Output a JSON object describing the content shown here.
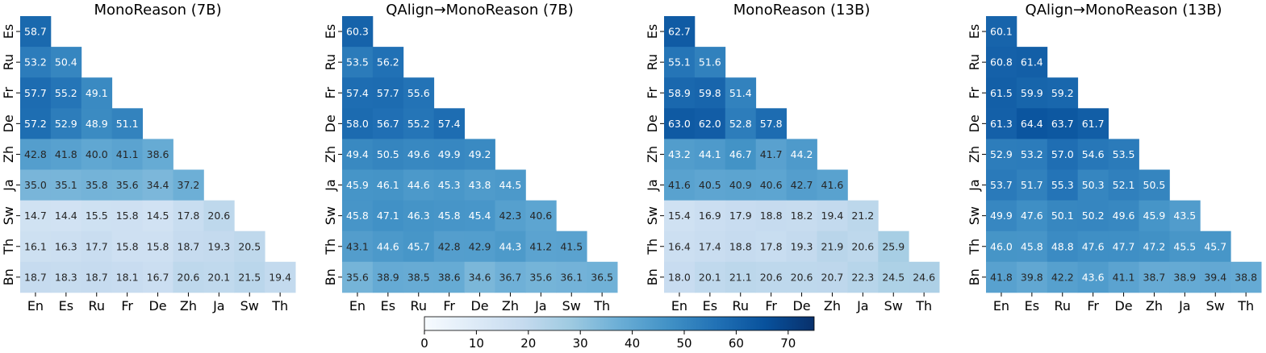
{
  "chart_data": [
    {
      "type": "heatmap",
      "title": "MonoReason (7B)",
      "rows": [
        "Es",
        "Ru",
        "Fr",
        "De",
        "Zh",
        "Ja",
        "Sw",
        "Th",
        "Bn"
      ],
      "cols": [
        "En",
        "Es",
        "Ru",
        "Fr",
        "De",
        "Zh",
        "Ja",
        "Sw",
        "Th"
      ],
      "values": [
        [
          58.7
        ],
        [
          53.2,
          50.4
        ],
        [
          57.7,
          55.2,
          49.1
        ],
        [
          57.2,
          52.9,
          48.9,
          51.1
        ],
        [
          42.8,
          41.8,
          40.0,
          41.1,
          38.6
        ],
        [
          35.0,
          35.1,
          35.8,
          35.6,
          34.4,
          37.2
        ],
        [
          14.7,
          14.4,
          15.5,
          15.8,
          14.5,
          17.8,
          20.6
        ],
        [
          16.1,
          16.3,
          17.7,
          15.8,
          15.8,
          18.7,
          19.3,
          20.5
        ],
        [
          18.7,
          18.3,
          18.7,
          18.1,
          16.7,
          20.6,
          20.1,
          21.5,
          19.4
        ]
      ]
    },
    {
      "type": "heatmap",
      "title": "QAlign→MonoReason (7B)",
      "rows": [
        "Es",
        "Ru",
        "Fr",
        "De",
        "Zh",
        "Ja",
        "Sw",
        "Th",
        "Bn"
      ],
      "cols": [
        "En",
        "Es",
        "Ru",
        "Fr",
        "De",
        "Zh",
        "Ja",
        "Sw",
        "Th"
      ],
      "values": [
        [
          60.3
        ],
        [
          53.5,
          56.2
        ],
        [
          57.4,
          57.7,
          55.6
        ],
        [
          58.0,
          56.7,
          55.2,
          57.4
        ],
        [
          49.4,
          50.5,
          49.6,
          49.9,
          49.2
        ],
        [
          45.9,
          46.1,
          44.6,
          45.3,
          43.8,
          44.5
        ],
        [
          45.8,
          47.1,
          46.3,
          45.8,
          45.4,
          42.3,
          40.6
        ],
        [
          43.1,
          44.6,
          45.7,
          42.8,
          42.9,
          44.3,
          41.2,
          41.5
        ],
        [
          35.6,
          38.9,
          38.5,
          38.6,
          34.6,
          36.7,
          35.6,
          36.1,
          36.5
        ]
      ]
    },
    {
      "type": "heatmap",
      "title": "MonoReason (13B)",
      "rows": [
        "Es",
        "Ru",
        "Fr",
        "De",
        "Zh",
        "Ja",
        "Sw",
        "Th",
        "Bn"
      ],
      "cols": [
        "En",
        "Es",
        "Ru",
        "Fr",
        "De",
        "Zh",
        "Ja",
        "Sw",
        "Th"
      ],
      "values": [
        [
          62.7
        ],
        [
          55.1,
          51.6
        ],
        [
          58.9,
          59.8,
          51.4
        ],
        [
          63.0,
          62.0,
          52.8,
          57.8
        ],
        [
          43.2,
          44.1,
          46.7,
          41.7,
          44.2
        ],
        [
          41.6,
          40.5,
          40.9,
          40.6,
          42.7,
          41.6
        ],
        [
          15.4,
          16.9,
          17.9,
          18.8,
          18.2,
          19.4,
          21.2
        ],
        [
          16.4,
          17.4,
          18.8,
          17.8,
          19.3,
          21.9,
          20.6,
          25.9
        ],
        [
          18.0,
          20.1,
          21.1,
          20.6,
          20.6,
          20.7,
          22.3,
          24.5,
          24.6
        ]
      ]
    },
    {
      "type": "heatmap",
      "title": "QAlign→MonoReason (13B)",
      "rows": [
        "Es",
        "Ru",
        "Fr",
        "De",
        "Zh",
        "Ja",
        "Sw",
        "Th",
        "Bn"
      ],
      "cols": [
        "En",
        "Es",
        "Ru",
        "Fr",
        "De",
        "Zh",
        "Ja",
        "Sw",
        "Th"
      ],
      "values": [
        [
          60.1
        ],
        [
          60.8,
          61.4
        ],
        [
          61.5,
          59.9,
          59.2
        ],
        [
          61.3,
          64.4,
          63.7,
          61.7
        ],
        [
          52.9,
          53.2,
          57.0,
          54.6,
          53.5
        ],
        [
          53.7,
          51.7,
          55.3,
          50.3,
          52.1,
          50.5
        ],
        [
          49.9,
          47.6,
          50.1,
          50.2,
          49.6,
          45.9,
          43.5
        ],
        [
          46.0,
          45.8,
          48.8,
          47.6,
          47.7,
          47.2,
          45.5,
          45.7
        ],
        [
          41.8,
          39.8,
          42.2,
          43.6,
          41.1,
          38.7,
          38.9,
          39.4,
          38.8
        ]
      ]
    }
  ],
  "colorbar": {
    "min": 0,
    "max": 75,
    "ticks": [
      0,
      10,
      20,
      30,
      40,
      50,
      60,
      70
    ],
    "colormap": "Blues",
    "colors": [
      "#f7fbff",
      "#deebf7",
      "#c6dbef",
      "#9ecae1",
      "#6baed6",
      "#4292c6",
      "#2171b5",
      "#08519c",
      "#08306b"
    ]
  }
}
